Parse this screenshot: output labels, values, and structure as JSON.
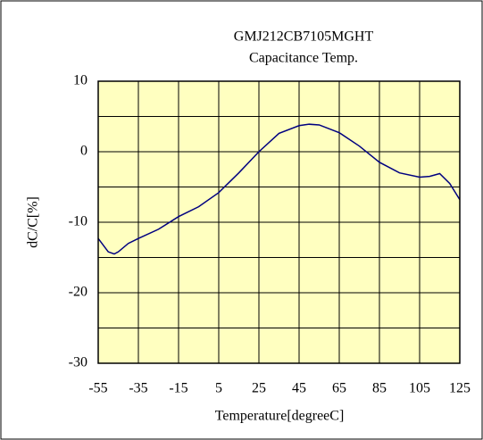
{
  "chart_data": {
    "type": "line",
    "title": "GMJ212CB7105MGHT",
    "subtitle": "Capacitance Temp.",
    "x_label": "Temperature[degreeC]",
    "y_label": "dC/C[%]",
    "x": [
      -55,
      -50,
      -47,
      -45,
      -40,
      -35,
      -25,
      -15,
      -5,
      5,
      15,
      25,
      35,
      45,
      50,
      55,
      65,
      75,
      85,
      95,
      105,
      110,
      115,
      120,
      125
    ],
    "series": [
      {
        "name": "dC/C",
        "color": "#000080",
        "values": [
          -12.3,
          -14.2,
          -14.5,
          -14.2,
          -13,
          -12.3,
          -11,
          -9.2,
          -7.8,
          -5.8,
          -3,
          0,
          2.6,
          3.7,
          3.9,
          3.8,
          2.7,
          0.8,
          -1.5,
          -3,
          -3.6,
          -3.5,
          -3.1,
          -4.5,
          -6.8
        ]
      }
    ],
    "xlim": [
      -55,
      125
    ],
    "xticks": [
      -55,
      -35,
      -15,
      5,
      25,
      45,
      65,
      85,
      105,
      125
    ],
    "ylim": [
      -30,
      10
    ],
    "yticks": [
      -30,
      -20,
      -10,
      0,
      10
    ],
    "yminor_grid": [
      -25,
      -15,
      -5,
      5
    ],
    "grid": true,
    "plot_background": "#ffffc0"
  }
}
